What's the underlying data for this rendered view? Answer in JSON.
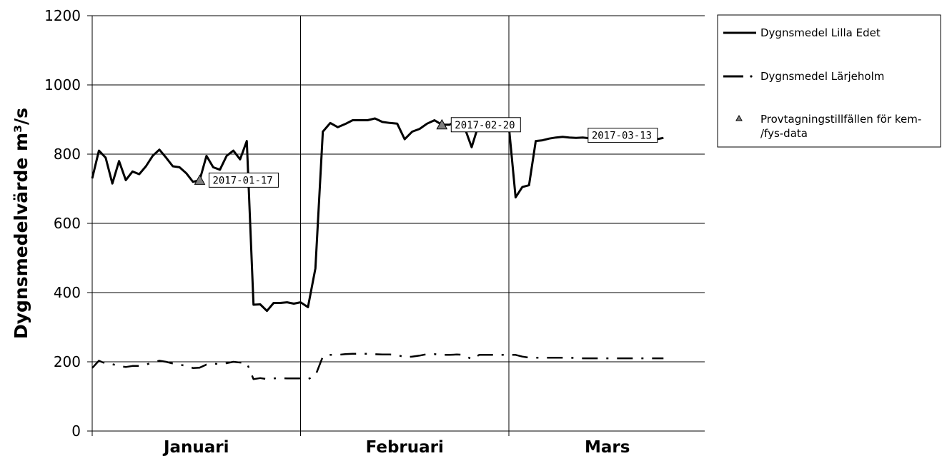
{
  "chart_data": {
    "type": "line",
    "title": "",
    "xlabel": "",
    "ylabel": "Dygnsmedelvärde m³/s",
    "ylim": [
      0,
      1200
    ],
    "yticks": [
      "0",
      "200",
      "400",
      "600",
      "800",
      "1000",
      "1200"
    ],
    "ytick_values": [
      0,
      200,
      400,
      600,
      800,
      1000,
      1200
    ],
    "months": [
      "Januari",
      "Februari",
      "Mars"
    ],
    "grid": "horizontal lines at each y tick; vertical lines at month boundaries",
    "legend_placement": "right",
    "series": [
      {
        "name": "Dygnsmedel Lilla Edet",
        "style": "solid",
        "color": "#000000",
        "x_start": "2017-01-01",
        "values": [
          730,
          810,
          790,
          715,
          780,
          725,
          750,
          742,
          765,
          795,
          813,
          790,
          765,
          762,
          745,
          720,
          725,
          795,
          762,
          755,
          795,
          810,
          785,
          838,
          365,
          366,
          347,
          370,
          370,
          372,
          368,
          372,
          358,
          470,
          865,
          890,
          878,
          887,
          898,
          898,
          898,
          903,
          893,
          890,
          888,
          843,
          865,
          873,
          888,
          898,
          885,
          885,
          895,
          880,
          820,
          890,
          870,
          870,
          878,
          880,
          675,
          705,
          710,
          838,
          840,
          845,
          848,
          850,
          848,
          847,
          848,
          846,
          845,
          845,
          840,
          843,
          848,
          850,
          843,
          840,
          841,
          843,
          847
        ]
      },
      {
        "name": "Dygnsmedel Lärjeholm",
        "style": "dash-dot",
        "color": "#000000",
        "x_start": "2017-01-01",
        "values": [
          182,
          203,
          195,
          193,
          188,
          185,
          188,
          188,
          192,
          198,
          203,
          200,
          195,
          192,
          188,
          182,
          183,
          192,
          195,
          193,
          196,
          200,
          198,
          197,
          150,
          153,
          150,
          152,
          153,
          152,
          152,
          152,
          150,
          160,
          215,
          220,
          220,
          222,
          223,
          223,
          223,
          222,
          221,
          221,
          220,
          213,
          215,
          218,
          222,
          222,
          220,
          220,
          221,
          220,
          207,
          220,
          220,
          220,
          220,
          220,
          220,
          215,
          212,
          212,
          212,
          212,
          212,
          212,
          212,
          211,
          210,
          210,
          210,
          210,
          210,
          210,
          210,
          210,
          210,
          210,
          210,
          210,
          210
        ]
      }
    ],
    "markers": {
      "name": "Provtagningstillfällen för kem-/fys-data",
      "legend_lines": [
        "Provtagningstillfällen för kem-",
        "/fys-data"
      ],
      "color": "#808080",
      "points": [
        {
          "date": "2017-01-17",
          "label": "2017-01-17",
          "value": 725
        },
        {
          "date": "2017-02-20",
          "label": "2017-02-20",
          "value": 885
        },
        {
          "date": "2017-03-13",
          "label": "2017-03-13",
          "value": null
        }
      ]
    }
  }
}
